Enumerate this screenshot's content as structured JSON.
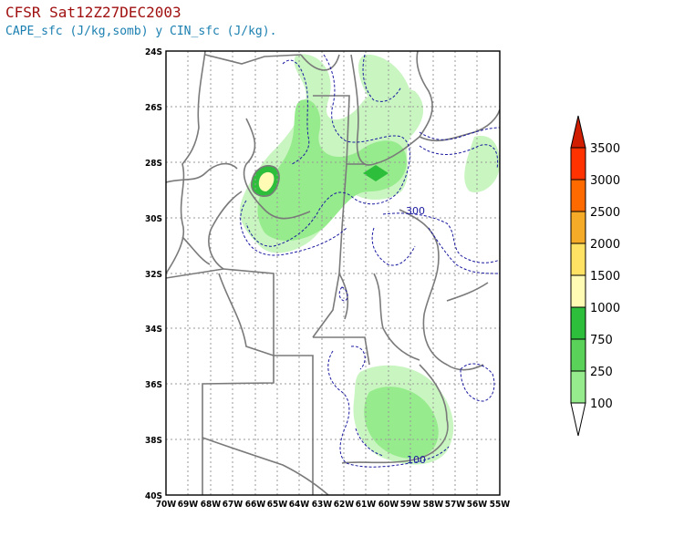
{
  "header": {
    "title": "CFSR Sat12Z27DEC2003",
    "subtitle": "CAPE_sfc (J/kg,somb) y CIN_sfc (J/kg)."
  },
  "map": {
    "lat_labels": [
      "24S",
      "26S",
      "28S",
      "30S",
      "32S",
      "34S",
      "36S",
      "38S",
      "40S"
    ],
    "lon_labels": [
      "70W",
      "69W",
      "68W",
      "67W",
      "66W",
      "65W",
      "64W",
      "63W",
      "62W",
      "61W",
      "60W",
      "59W",
      "58W",
      "57W",
      "56W",
      "55W"
    ],
    "contour_labels": [
      "300",
      "100"
    ],
    "cin_contour_color": "#1a1aa0",
    "border_color": "#7a7a7a"
  },
  "colorbar": {
    "levels": [
      "100",
      "250",
      "750",
      "1000",
      "1500",
      "2000",
      "2500",
      "3000",
      "3500"
    ],
    "colors": [
      "#c8f5c0",
      "#96eb8c",
      "#5ad25a",
      "#2dbe3c",
      "#fffab4",
      "#ffe164",
      "#f5aa28",
      "#ff6a00",
      "#ff3200",
      "#d21e00"
    ]
  },
  "chart_data": {
    "type": "heatmap",
    "title": "CFSR Sat12Z27DEC2003",
    "subtitle": "CAPE_sfc (J/kg,somb) y CIN_sfc (J/kg).",
    "x_range": [
      "70W",
      "55W"
    ],
    "y_range": [
      "24S",
      "40S"
    ],
    "shaded_levels": [
      100,
      250,
      750,
      1000,
      1500,
      2000,
      2500,
      3000,
      3500
    ],
    "contour_labels": [
      300,
      100
    ],
    "grid": true
  }
}
